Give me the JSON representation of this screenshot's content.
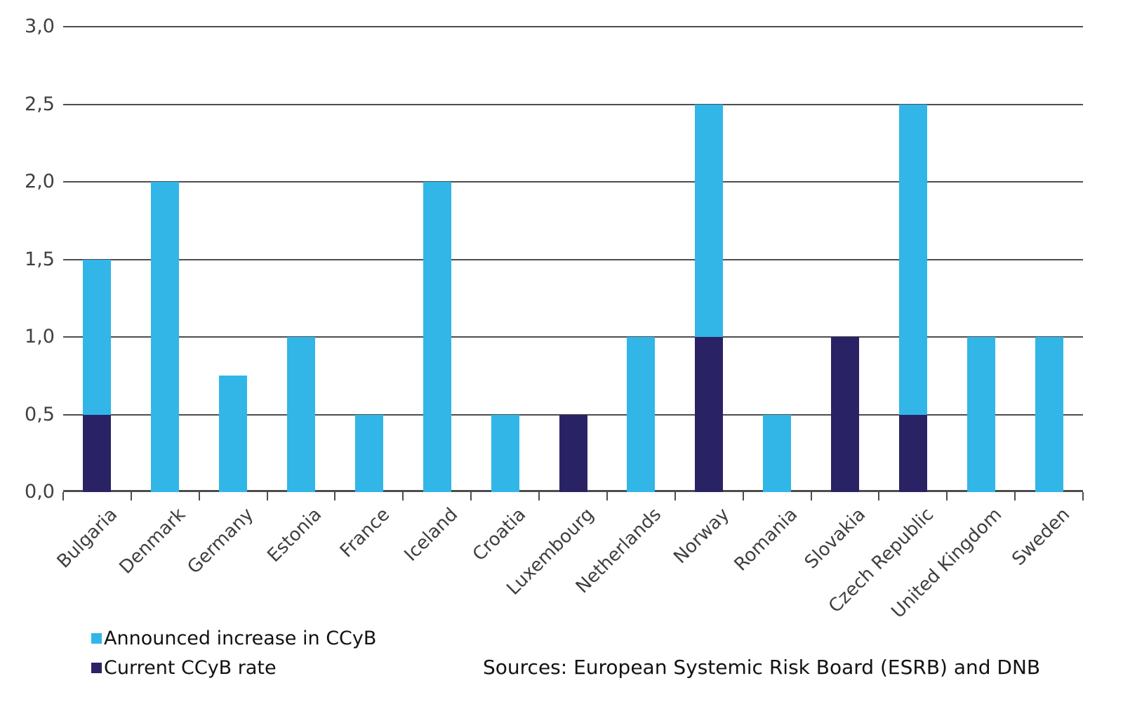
{
  "chart_data": {
    "type": "bar",
    "stacked": true,
    "categories": [
      "Bulgaria",
      "Denmark",
      "Germany",
      "Estonia",
      "France",
      "Iceland",
      "Croatia",
      "Luxembourg",
      "Netherlands",
      "Norway",
      "Romania",
      "Slovakia",
      "Czech Republic",
      "United Kingdom",
      "Sweden"
    ],
    "series": [
      {
        "name": "Current CCyB rate",
        "color": "#292365",
        "values": [
          0.5,
          0,
          0,
          0,
          0,
          0,
          0,
          0.5,
          0,
          1.0,
          0,
          1.0,
          0.5,
          0,
          0
        ]
      },
      {
        "name": "Announced increase in CCyB",
        "color": "#31B6E7",
        "values": [
          1.0,
          2.0,
          0.75,
          1.0,
          0.5,
          2.0,
          0.5,
          0,
          1.0,
          1.5,
          0.5,
          0,
          2.0,
          1.0,
          1.0
        ]
      }
    ],
    "title": "",
    "xlabel": "",
    "ylabel": "",
    "ylim": [
      0,
      3
    ],
    "ytick_step": 0.5,
    "ytick_labels": [
      "0,0",
      "0,5",
      "1,0",
      "1,5",
      "2,0",
      "2,5",
      "3,0"
    ],
    "grid": true,
    "legend_position": "bottom-left"
  },
  "legend": {
    "items": [
      {
        "label": "Announced increase in CCyB",
        "color": "#31B6E7"
      },
      {
        "label": "Current CCyB rate",
        "color": "#292365"
      }
    ]
  },
  "footer": {
    "sources": "Sources: European Systemic Risk Board (ESRB) and DNB"
  },
  "colors": {
    "announced": "#31B6E7",
    "current": "#292365",
    "gridline": "#4d4d4d",
    "axis_text": "#404040",
    "label_text": "#121212"
  }
}
